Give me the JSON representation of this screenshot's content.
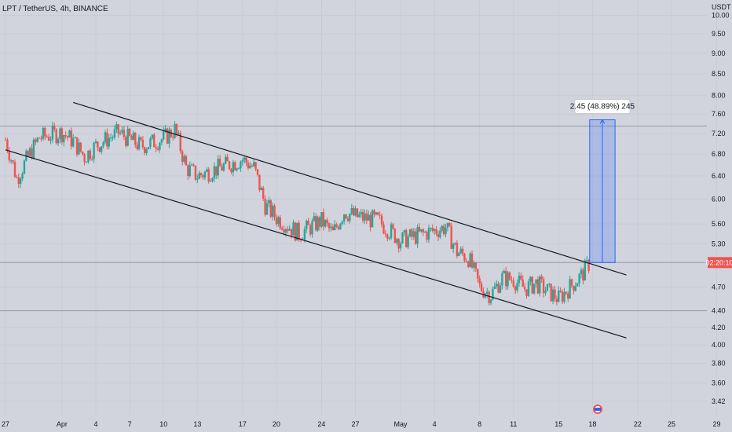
{
  "header": {
    "symbol": "LPT / TetherUS, 4h, BINANCE",
    "currency": "USDT"
  },
  "colors": {
    "background": "#d1d4dc",
    "up": "#26a69a",
    "down": "#ef5350",
    "channel": "#131722",
    "measure_fill": "#2962ff",
    "price_tag": "#ef5350"
  },
  "price_tag": "02:20:10",
  "measure": {
    "label": "2.45 (48.89%) 245",
    "from_price": 5.03,
    "to_price": 7.48,
    "from_date": "May 17 18:00",
    "to_date": "May 20 00:00"
  },
  "axis": {
    "y_ticks": [
      "10.00",
      "9.50",
      "9.00",
      "8.50",
      "8.00",
      "7.60",
      "7.20",
      "6.80",
      "6.40",
      "6.00",
      "5.60",
      "5.30",
      "4.70",
      "4.40",
      "4.20",
      "4.00",
      "3.80",
      "3.60",
      "3.42"
    ],
    "x_ticks": [
      "27",
      "Apr",
      "4",
      "7",
      "10",
      "13",
      "17",
      "20",
      "24",
      "27",
      "May",
      "4",
      "8",
      "11",
      "15",
      "18",
      "22",
      "25",
      "29"
    ],
    "y_scale": "log",
    "ylim": [
      3.35,
      10.3
    ]
  },
  "chart_data": {
    "type": "candlestick",
    "x_range": [
      "Mar 27",
      "Jun 01"
    ],
    "horizontal_levels": [
      7.35,
      5.03,
      4.4
    ],
    "channel": {
      "upper": {
        "from": [
          "Apr 02",
          7.85
        ],
        "to": [
          "May 21",
          4.86
        ]
      },
      "lower": {
        "from": [
          "Mar 27",
          6.88
        ],
        "to": [
          "May 21",
          4.08
        ]
      }
    },
    "price_path": [
      [
        "Mar 27",
        7.08
      ],
      [
        "Mar 28",
        6.35
      ],
      [
        "Mar 29",
        6.75
      ],
      [
        "Mar 30",
        7.12
      ],
      [
        "Apr 01",
        7.22
      ],
      [
        "Apr 02",
        7.05
      ],
      [
        "Apr 03",
        6.75
      ],
      [
        "Apr 04",
        6.96
      ],
      [
        "Apr 06",
        7.22
      ],
      [
        "Apr 08",
        6.95
      ],
      [
        "Apr 10",
        7.1
      ],
      [
        "Apr 11",
        7.28
      ],
      [
        "Apr 12",
        6.55
      ],
      [
        "Apr 13",
        6.4
      ],
      [
        "Apr 15",
        6.55
      ],
      [
        "Apr 17",
        6.7
      ],
      [
        "Apr 18",
        6.55
      ],
      [
        "Apr 19",
        5.9
      ],
      [
        "Apr 20",
        5.7
      ],
      [
        "Apr 22",
        5.45
      ],
      [
        "Apr 24",
        5.65
      ],
      [
        "Apr 25",
        5.45
      ],
      [
        "Apr 26",
        5.8
      ],
      [
        "Apr 27",
        5.72
      ],
      [
        "Apr 29",
        5.65
      ],
      [
        "May 01",
        5.35
      ],
      [
        "May 03",
        5.45
      ],
      [
        "May 05",
        5.55
      ],
      [
        "May 06",
        5.18
      ],
      [
        "May 07",
        5.1
      ],
      [
        "May 08",
        4.7
      ],
      [
        "May 09",
        4.6
      ],
      [
        "May 10",
        4.82
      ],
      [
        "May 11",
        4.8
      ],
      [
        "May 12",
        4.68
      ],
      [
        "May 13",
        4.75
      ],
      [
        "May 14",
        4.65
      ],
      [
        "May 15",
        4.55
      ],
      [
        "May 16",
        4.7
      ],
      [
        "May 17",
        4.85
      ],
      [
        "May 17 18:00",
        5.03
      ]
    ]
  }
}
